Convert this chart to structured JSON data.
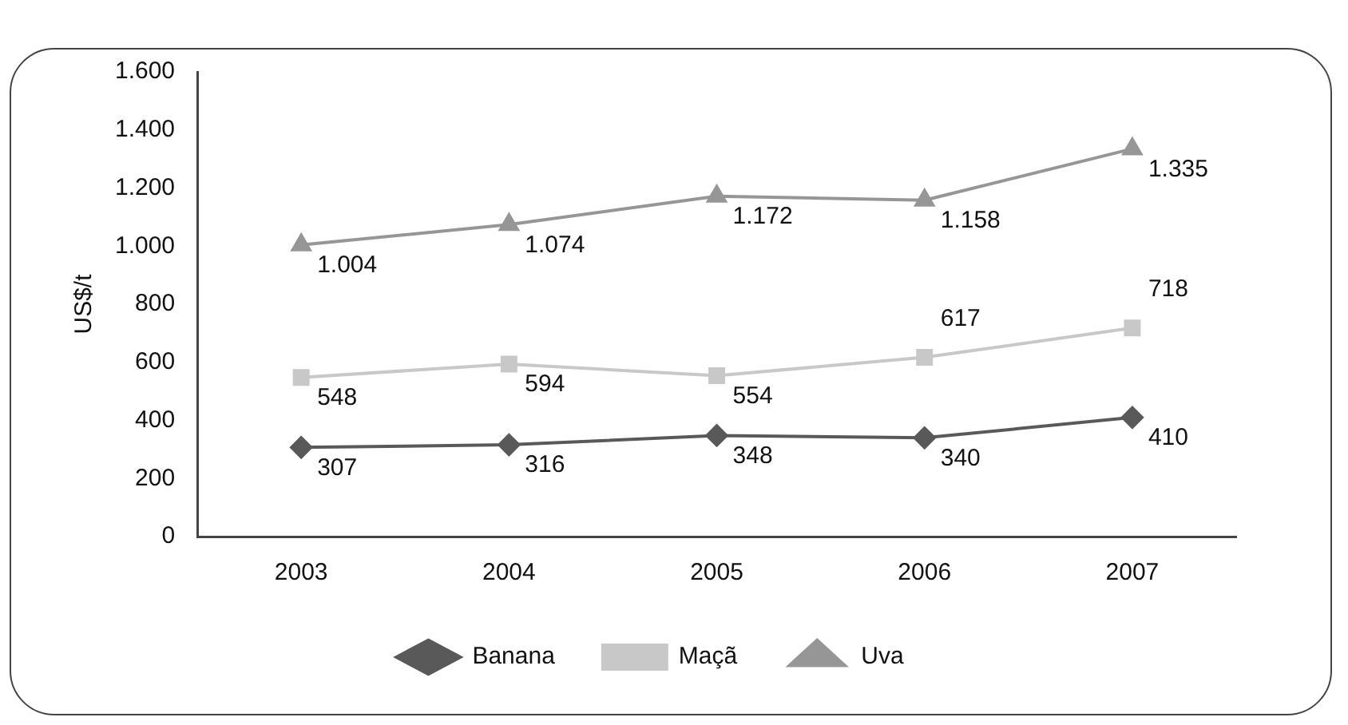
{
  "chart_data": {
    "type": "line",
    "ylabel": "US$/t",
    "categories": [
      "2003",
      "2004",
      "2005",
      "2006",
      "2007"
    ],
    "ylim": [
      0,
      1600
    ],
    "yticks": [
      0,
      {
        "value": 200,
        "label": "200"
      },
      {
        "value": 400,
        "label": "400"
      },
      {
        "value": 600,
        "label": "600"
      },
      {
        "value": 800,
        "label": "800"
      },
      {
        "value": 1000,
        "label": "1.000"
      },
      {
        "value": 1200,
        "label": "1.200"
      },
      {
        "value": 1400,
        "label": "1.400"
      },
      {
        "value": 1600,
        "label": "1.600"
      }
    ],
    "grid": false,
    "legend": "bottom",
    "line_style": "solid",
    "series": [
      {
        "name": "Banana",
        "color": "#595959",
        "marker": "diamond",
        "values": [
          307,
          316,
          348,
          340,
          410
        ],
        "value_labels": [
          "307",
          "316",
          "348",
          "340",
          "410"
        ]
      },
      {
        "name": "Maçã",
        "color": "#c8c8c8",
        "marker": "square",
        "values": [
          548,
          594,
          554,
          617,
          718
        ],
        "value_labels": [
          "548",
          "594",
          "554",
          "617",
          "718"
        ]
      },
      {
        "name": "Uva",
        "color": "#969696",
        "marker": "triangle",
        "values": [
          1004,
          1074,
          1172,
          1158,
          1335
        ],
        "value_labels": [
          "1.004",
          "1.074",
          "1.172",
          "1.158",
          "1.335"
        ]
      }
    ]
  }
}
